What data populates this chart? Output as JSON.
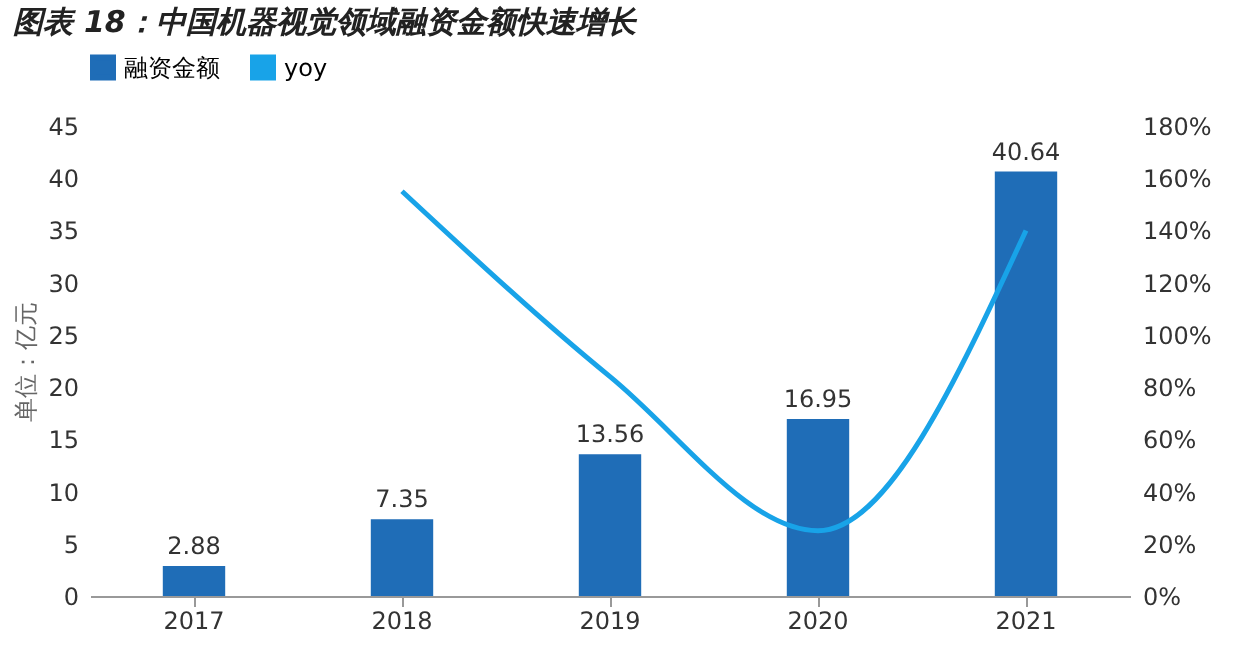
{
  "chart_data": {
    "type": "bar",
    "title": "图表 18：中国机器视觉领域融资金额快速增长",
    "ylabel": "单位：亿元",
    "categories": [
      "2017",
      "2018",
      "2019",
      "2020",
      "2021"
    ],
    "series": [
      {
        "name": "融资金额",
        "color": "#1f6db7",
        "values": [
          2.88,
          7.35,
          13.56,
          16.95,
          40.64
        ],
        "value_labels": [
          "2.88",
          "7.35",
          "13.56",
          "16.95",
          "40.64"
        ]
      },
      {
        "name": "yoy",
        "type": "line",
        "axis": "y2",
        "color": "#18a3e8",
        "values": [
          null,
          155,
          84,
          25,
          140
        ]
      }
    ],
    "ylim": [
      0,
      45
    ],
    "yticks": [
      0,
      5,
      10,
      15,
      20,
      25,
      30,
      35,
      40,
      45
    ],
    "y2lim": [
      0,
      180
    ],
    "y2ticks": [
      {
        "value": 0,
        "label": "0%"
      },
      {
        "value": 20,
        "label": "20%"
      },
      {
        "value": 40,
        "label": "40%"
      },
      {
        "value": 60,
        "label": "60%"
      },
      {
        "value": 80,
        "label": "80%"
      },
      {
        "value": 100,
        "label": "100%"
      },
      {
        "value": 120,
        "label": "120%"
      },
      {
        "value": 140,
        "label": "140%"
      },
      {
        "value": 160,
        "label": "160%"
      },
      {
        "value": 180,
        "label": "180%"
      }
    ],
    "legend": "top",
    "line_style": "solid"
  }
}
